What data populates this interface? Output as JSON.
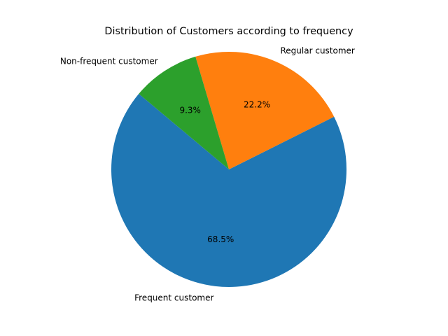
{
  "chart_data": {
    "type": "pie",
    "title": "Distribution of Customers according to frequency",
    "slices": [
      {
        "label": "Frequent customer",
        "value": 68.5,
        "pct_label": "68.5%",
        "color": "#1f77b4"
      },
      {
        "label": "Regular customer",
        "value": 22.2,
        "pct_label": "22.2%",
        "color": "#ff7f0e"
      },
      {
        "label": "Non-frequent customer",
        "value": 9.3,
        "pct_label": "9.3%",
        "color": "#2ca02c"
      }
    ],
    "start_angle_deg": 140,
    "direction": "counterclockwise",
    "legend": "none"
  }
}
